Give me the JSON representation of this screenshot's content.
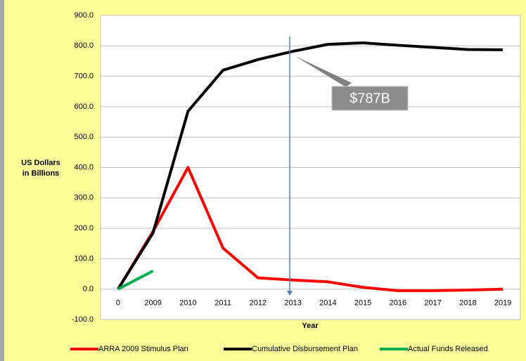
{
  "chart_data": {
    "type": "line",
    "ylabel": [
      "US Dollars",
      "in Billions"
    ],
    "xlabel": "Year",
    "categories": [
      "0",
      "2009",
      "2010",
      "2011",
      "2012",
      "2013",
      "2014",
      "2015",
      "2016",
      "2017",
      "2018",
      "2019"
    ],
    "series": [
      {
        "name": "ARRA 2009 Stimulus Plan",
        "color": "#ff0000",
        "values": [
          0,
          190,
          400,
          135,
          37,
          30,
          24,
          6,
          -5,
          -5,
          -3,
          0
        ]
      },
      {
        "name": "Cumulative Disbursement Plan",
        "color": "#000000",
        "values": [
          0,
          185,
          585,
          720,
          755,
          782,
          805,
          810,
          802,
          795,
          788,
          787
        ]
      },
      {
        "name": "Actual Funds Released",
        "color": "#00b050",
        "values": [
          0,
          60,
          null,
          null,
          null,
          null,
          null,
          null,
          null,
          null,
          null,
          null
        ]
      }
    ],
    "ylim": [
      -100,
      900
    ],
    "yticks": [
      {
        "value": -100,
        "label": "-100.0"
      },
      {
        "value": 0,
        "label": "0.0"
      },
      {
        "value": 100,
        "label": "100.0"
      },
      {
        "value": 200,
        "label": "200.0"
      },
      {
        "value": 300,
        "label": "300.0"
      },
      {
        "value": 400,
        "label": "400.0"
      },
      {
        "value": 500,
        "label": "500.0"
      },
      {
        "value": 600,
        "label": "600.0"
      },
      {
        "value": 700,
        "label": "700.0"
      },
      {
        "value": 800,
        "label": "800.0"
      },
      {
        "value": 900,
        "label": "900.0"
      }
    ],
    "grid": true,
    "legend": "bottom",
    "annotations": [
      {
        "text": "$787B"
      }
    ]
  }
}
